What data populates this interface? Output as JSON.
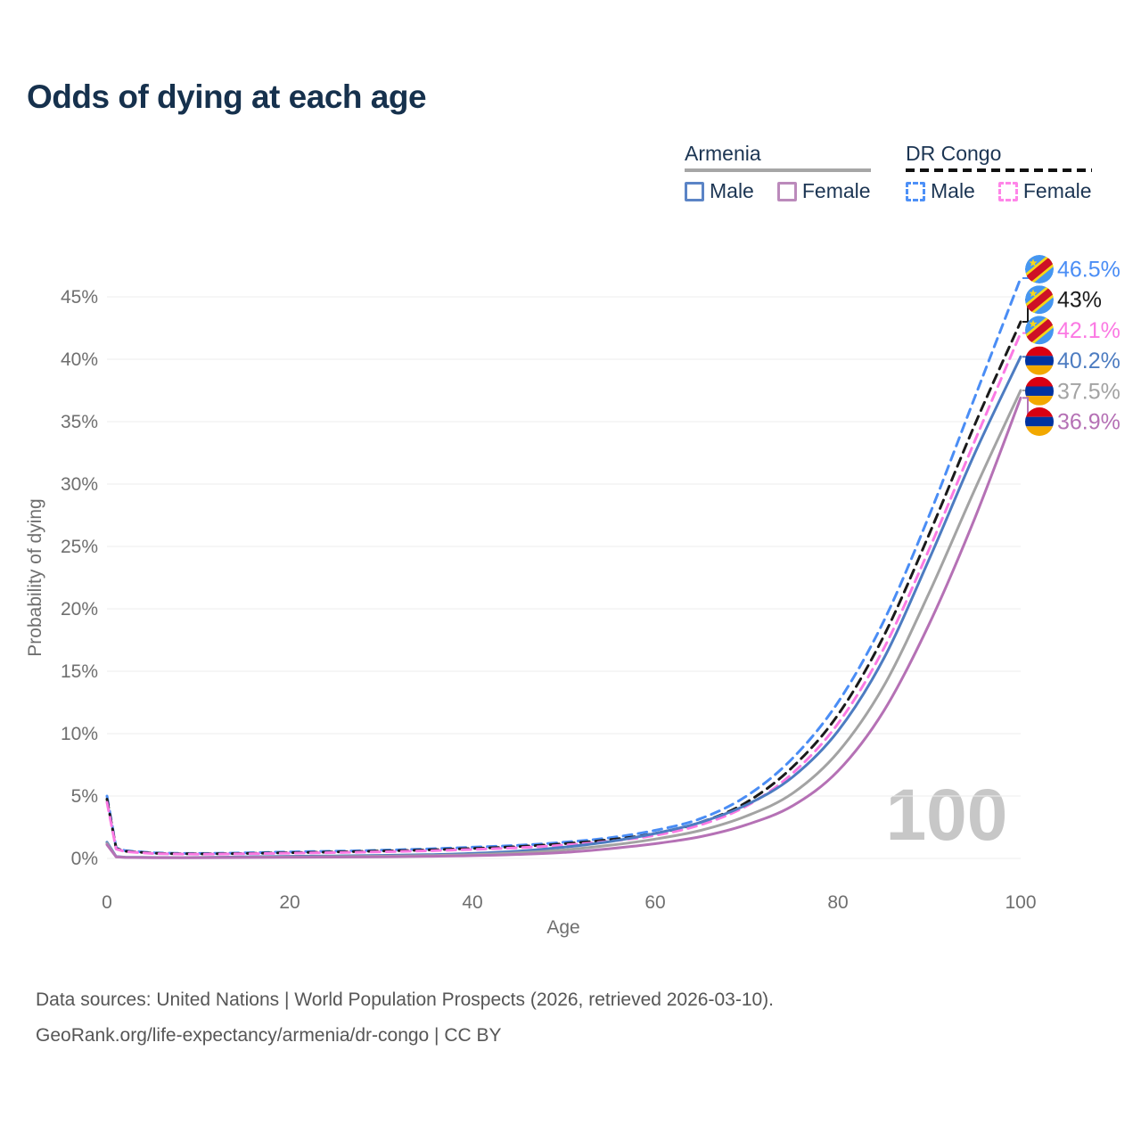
{
  "title": "Odds of dying at each age",
  "legend": {
    "groups": [
      {
        "name": "Armenia",
        "line_style": "solid",
        "underline_color": "#a6a6a6",
        "items": [
          {
            "label": "Male",
            "color": "#5b84c6"
          },
          {
            "label": "Female",
            "color": "#bb8abb"
          }
        ]
      },
      {
        "name": "DR Congo",
        "line_style": "dashed",
        "underline_color": "#111111",
        "items": [
          {
            "label": "Male",
            "color": "#4d90f7"
          },
          {
            "label": "Female",
            "color": "#ff85e8"
          }
        ]
      }
    ]
  },
  "chart_data": {
    "type": "line",
    "title": "Odds of dying at each age",
    "xlabel": "Age",
    "ylabel": "Probability of dying",
    "xlim": [
      0,
      100
    ],
    "ylim": [
      0,
      47.5
    ],
    "x_ticks": [
      "0",
      "20",
      "40",
      "60",
      "80",
      "100"
    ],
    "y_ticks": [
      "0%",
      "5%",
      "10%",
      "15%",
      "20%",
      "25%",
      "30%",
      "35%",
      "40%",
      "45%"
    ],
    "grid": true,
    "hover_age_watermark": "100",
    "x": [
      0,
      1,
      2,
      5,
      10,
      15,
      20,
      25,
      30,
      35,
      40,
      45,
      50,
      55,
      60,
      65,
      70,
      75,
      80,
      85,
      90,
      95,
      100
    ],
    "series": [
      {
        "name": "DR Congo Male",
        "country": "DR Congo",
        "sex": "Male",
        "flag": "drcongo",
        "color": "#4a8df5",
        "dash": true,
        "end_label": "46.5%",
        "values": [
          5.0,
          0.85,
          0.62,
          0.45,
          0.4,
          0.44,
          0.52,
          0.58,
          0.66,
          0.76,
          0.9,
          1.05,
          1.3,
          1.65,
          2.25,
          3.2,
          5.0,
          8.0,
          12.5,
          19.0,
          27.5,
          37.0,
          46.5
        ]
      },
      {
        "name": "DR Congo Both sexes",
        "country": "DR Congo",
        "sex": "Both",
        "flag": "drcongo",
        "color": "#1a1a1a",
        "dash": true,
        "end_label": "43%",
        "values": [
          4.75,
          0.8,
          0.58,
          0.42,
          0.37,
          0.4,
          0.46,
          0.52,
          0.59,
          0.68,
          0.8,
          0.95,
          1.18,
          1.5,
          2.0,
          2.9,
          4.5,
          7.3,
          11.5,
          17.8,
          26.0,
          34.8,
          43.0
        ]
      },
      {
        "name": "DR Congo Female",
        "country": "DR Congo",
        "sex": "Female",
        "flag": "drcongo",
        "color": "#fb79e3",
        "dash": true,
        "end_label": "42.1%",
        "values": [
          4.5,
          0.75,
          0.54,
          0.39,
          0.34,
          0.37,
          0.42,
          0.47,
          0.53,
          0.61,
          0.72,
          0.86,
          1.07,
          1.38,
          1.85,
          2.7,
          4.2,
          6.8,
          10.8,
          16.8,
          24.8,
          33.5,
          42.1
        ]
      },
      {
        "name": "Armenia Male",
        "country": "Armenia",
        "sex": "Male",
        "flag": "armenia",
        "color": "#4d7cc1",
        "dash": false,
        "end_label": "40.2%",
        "values": [
          1.3,
          0.15,
          0.1,
          0.08,
          0.08,
          0.12,
          0.17,
          0.2,
          0.24,
          0.3,
          0.4,
          0.58,
          0.9,
          1.35,
          2.0,
          2.9,
          4.3,
          6.5,
          10.2,
          16.0,
          24.0,
          32.5,
          40.2
        ]
      },
      {
        "name": "Armenia Both sexes",
        "country": "Armenia",
        "sex": "Both",
        "flag": "armenia",
        "color": "#a3a3a3",
        "dash": false,
        "end_label": "37.5%",
        "values": [
          1.2,
          0.13,
          0.09,
          0.07,
          0.07,
          0.09,
          0.12,
          0.15,
          0.18,
          0.23,
          0.3,
          0.44,
          0.68,
          1.05,
          1.55,
          2.25,
          3.4,
          5.2,
          8.5,
          13.8,
          21.3,
          29.6,
          37.5
        ]
      },
      {
        "name": "Armenia Female",
        "country": "Armenia",
        "sex": "Female",
        "flag": "armenia",
        "color": "#b571b5",
        "dash": false,
        "end_label": "36.9%",
        "values": [
          1.1,
          0.12,
          0.08,
          0.06,
          0.06,
          0.07,
          0.09,
          0.11,
          0.13,
          0.17,
          0.22,
          0.32,
          0.48,
          0.78,
          1.18,
          1.75,
          2.7,
          4.2,
          7.0,
          11.8,
          18.8,
          27.3,
          36.9
        ]
      }
    ]
  },
  "footer": {
    "line1": "Data sources: United Nations | World Population Prospects (2026, retrieved 2026-03-10).",
    "line2": "GeoRank.org/life-expectancy/armenia/dr-congo | CC BY"
  }
}
